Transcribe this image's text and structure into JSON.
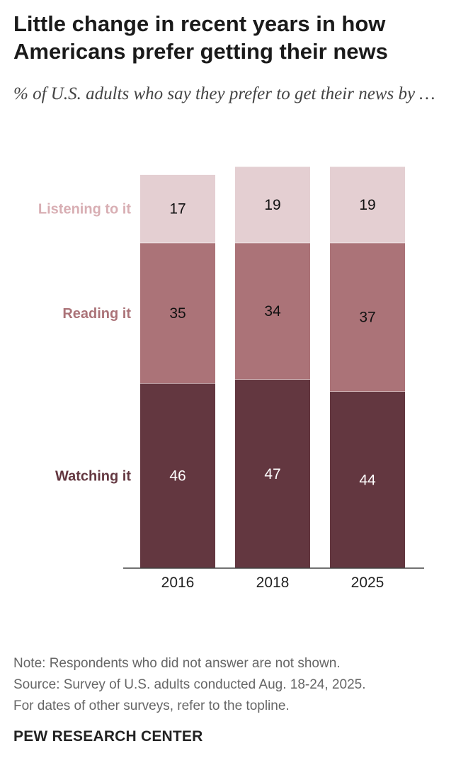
{
  "title": "Little change in recent years in how Americans prefer getting their news",
  "subtitle": "% of U.S. adults who say they prefer to get their news by …",
  "chart_data": {
    "type": "bar",
    "stacked": true,
    "categories": [
      "2016",
      "2018",
      "2025"
    ],
    "series": [
      {
        "name": "Watching it",
        "values": [
          46,
          47,
          44
        ],
        "color": "#633740"
      },
      {
        "name": "Reading it",
        "values": [
          35,
          34,
          37
        ],
        "color": "#ab7378"
      },
      {
        "name": "Listening to it",
        "values": [
          17,
          19,
          19
        ],
        "color": "#e4cfd2"
      }
    ],
    "label_colors": {
      "Watching it": "#633740",
      "Reading it": "#ab7378",
      "Listening to it": "#d8aeb3"
    },
    "value_label_colors": {
      "Watching it": "#ffffff",
      "Reading it": "#111111",
      "Listening to it": "#111111"
    },
    "ylim": [
      0,
      100
    ],
    "legend": "left",
    "grid": false
  },
  "notes": [
    "Note: Respondents who did not answer are not shown.",
    "Source: Survey of U.S. adults conducted Aug. 18-24, 2025.",
    "For dates of other surveys, refer to the topline."
  ],
  "brand": "PEW RESEARCH CENTER"
}
